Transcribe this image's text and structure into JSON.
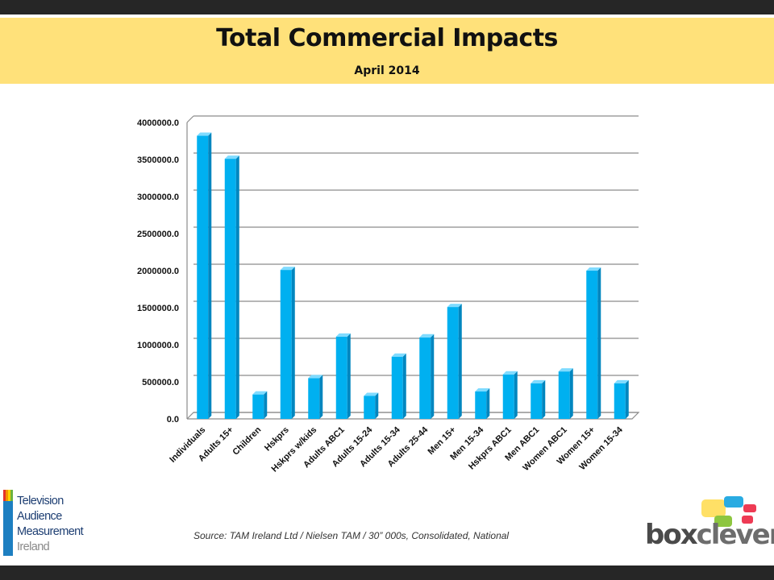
{
  "header": {
    "title": "Total Commercial Impacts",
    "subtitle": "April 2014"
  },
  "colors": {
    "bar_front": "#00b0f0",
    "bar_side": "#0086bf",
    "bar_top": "#7fdbff",
    "banner": "#ffe17a",
    "dark_bar": "#262626"
  },
  "chart_data": {
    "type": "bar",
    "title": "",
    "xlabel": "",
    "ylabel": "",
    "ylim": [
      0,
      4000000
    ],
    "y_ticks": [
      "0.0",
      "500000.0",
      "1000000.0",
      "1500000.0",
      "2000000.0",
      "2500000.0",
      "3000000.0",
      "3500000.0",
      "4000000.0"
    ],
    "categories": [
      "Individuals",
      "Adults 15+",
      "Children",
      "Hskprs",
      "Hskprs w/kids",
      "Adults ABC1",
      "Adults 15-24",
      "Adults 15-34",
      "Adults 25-44",
      "Men 15+",
      "Men 15-34",
      "Hskprs ABC1",
      "Men ABC1",
      "Women ABC1",
      "Women 15+",
      "Women 15-34"
    ],
    "values": [
      3820000,
      3510000,
      330000,
      2010000,
      550000,
      1110000,
      310000,
      840000,
      1100000,
      1510000,
      370000,
      600000,
      480000,
      640000,
      2000000,
      480000
    ],
    "grid": true,
    "legend": "none"
  },
  "footer": {
    "source": "Source: TAM Ireland Ltd / Nielsen TAM / 30” 000s, Consolidated, National"
  },
  "logos": {
    "tam_lines": [
      "Television",
      "Audience",
      "Measurement",
      "Ireland"
    ],
    "boxclever_part1": "box",
    "boxclever_part2": "clever"
  }
}
